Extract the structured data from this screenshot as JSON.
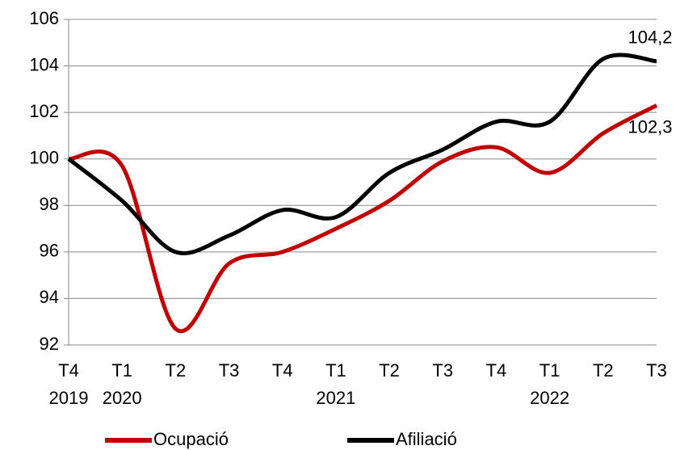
{
  "chart_data": {
    "type": "line",
    "categories": [
      "T4",
      "T1",
      "T2",
      "T3",
      "T4",
      "T1",
      "T2",
      "T3",
      "T4",
      "T1",
      "T2",
      "T3"
    ],
    "years": [
      "2019",
      "2020",
      null,
      null,
      null,
      "2021",
      null,
      null,
      null,
      "2022",
      null,
      null
    ],
    "series": [
      {
        "name": "Ocupació",
        "color": "#c00000",
        "values": [
          100,
          99.7,
          92.7,
          95.5,
          96.0,
          97.0,
          98.2,
          99.9,
          100.5,
          99.4,
          101.1,
          102.3
        ],
        "value_labels": [
          null,
          null,
          null,
          null,
          null,
          null,
          null,
          null,
          null,
          null,
          null,
          "102,3"
        ]
      },
      {
        "name": "Afiliació",
        "color": "#000000",
        "values": [
          100,
          98.2,
          96.0,
          96.7,
          97.8,
          97.5,
          99.4,
          100.4,
          101.6,
          101.6,
          104.3,
          104.2
        ],
        "value_labels": [
          null,
          null,
          null,
          null,
          null,
          null,
          null,
          null,
          null,
          null,
          null,
          "104,2"
        ]
      }
    ],
    "ylim": [
      92,
      106
    ],
    "yticks": [
      92,
      94,
      96,
      98,
      100,
      102,
      104,
      106
    ],
    "grid": true
  }
}
